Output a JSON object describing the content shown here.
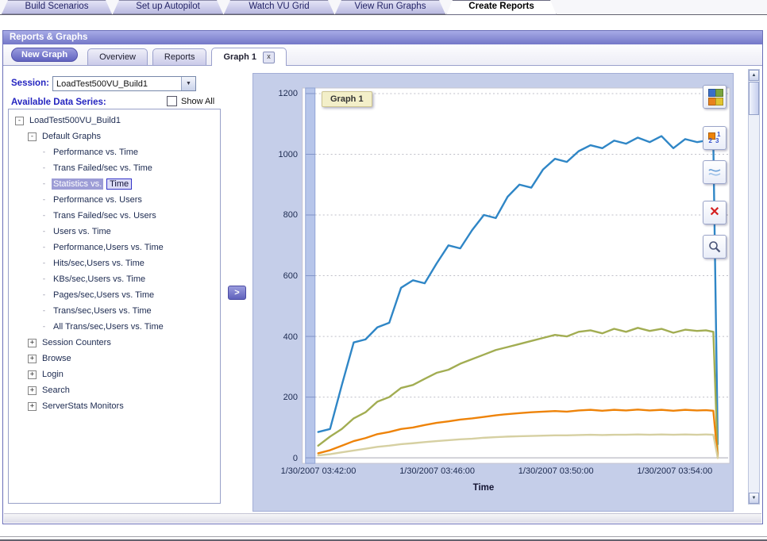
{
  "top_tabs": {
    "items": [
      {
        "label": "Build Scenarios",
        "active": false
      },
      {
        "label": "Set up Autopilot",
        "active": false
      },
      {
        "label": "Watch VU Grid",
        "active": false
      },
      {
        "label": "View Run Graphs",
        "active": false
      },
      {
        "label": "Create Reports",
        "active": true
      }
    ]
  },
  "panel": {
    "title": "Reports & Graphs",
    "new_graph_button": "New Graph",
    "close_glyph": "x",
    "tabs": [
      {
        "label": "Overview",
        "active": false,
        "closable": false
      },
      {
        "label": "Reports",
        "active": false,
        "closable": false
      },
      {
        "label": "Graph 1",
        "active": true,
        "closable": true
      }
    ]
  },
  "sidebar": {
    "session_label": "Session:",
    "session_value": "LoadTest500VU_Build1",
    "series_heading": "Available Data Series:",
    "show_all_label": "Show All",
    "add_button_label": ">",
    "tree": [
      {
        "label": "LoadTest500VU_Build1",
        "level": 0,
        "expander": "minus"
      },
      {
        "label": "Default Graphs",
        "level": 1,
        "expander": "minus"
      },
      {
        "label": "Performance vs. Time",
        "level": 2,
        "expander": "leaf"
      },
      {
        "label": "Trans Failed/sec vs. Time",
        "level": 2,
        "expander": "leaf"
      },
      {
        "label": "Statistics vs.",
        "boxed": "Time",
        "level": 2,
        "expander": "leaf",
        "selected": true
      },
      {
        "label": "Performance vs. Users",
        "level": 2,
        "expander": "leaf"
      },
      {
        "label": "Trans Failed/sec vs. Users",
        "level": 2,
        "expander": "leaf"
      },
      {
        "label": "Users vs. Time",
        "level": 2,
        "expander": "leaf"
      },
      {
        "label": "Performance,Users vs. Time",
        "level": 2,
        "expander": "leaf"
      },
      {
        "label": "Hits/sec,Users vs. Time",
        "level": 2,
        "expander": "leaf"
      },
      {
        "label": "KBs/sec,Users vs. Time",
        "level": 2,
        "expander": "leaf"
      },
      {
        "label": "Pages/sec,Users vs. Time",
        "level": 2,
        "expander": "leaf"
      },
      {
        "label": "Trans/sec,Users vs. Time",
        "level": 2,
        "expander": "leaf"
      },
      {
        "label": "All Trans/sec,Users vs. Time",
        "level": 2,
        "expander": "leaf"
      },
      {
        "label": "Session Counters",
        "level": 1,
        "expander": "plus"
      },
      {
        "label": "Browse",
        "level": 1,
        "expander": "plus"
      },
      {
        "label": "Login",
        "level": 1,
        "expander": "plus"
      },
      {
        "label": "Search",
        "level": 1,
        "expander": "plus"
      },
      {
        "label": "ServerStats Monitors",
        "level": 1,
        "expander": "plus"
      }
    ]
  },
  "toolbar": {
    "numbers": [
      "1",
      "2",
      "3"
    ],
    "delete_glyph": "✕",
    "palette": [
      "#3a6fc8",
      "#7aa53e",
      "#e8821e",
      "#e2c430"
    ],
    "button_names": [
      "graph-type-colors",
      "data-labels",
      "line-style",
      "delete-graph",
      "zoom"
    ]
  },
  "chart_data": {
    "type": "line",
    "title": "Graph 1",
    "xlabel": "Time",
    "ylabel": "",
    "ylim": [
      0,
      1200
    ],
    "yticks": [
      0,
      200,
      400,
      600,
      800,
      1000,
      1200
    ],
    "grid": "horizontal-dashed",
    "legend": "none",
    "xticks": [
      {
        "minute": 2,
        "label": "1/30/2007 03:42:00"
      },
      {
        "minute": 6,
        "label": "1/30/2007 03:46:00"
      },
      {
        "minute": 10,
        "label": "1/30/2007 03:50:00"
      },
      {
        "minute": 14,
        "label": "1/30/2007 03:54:00"
      }
    ],
    "x_minutes": [
      2.0,
      2.4,
      2.8,
      3.2,
      3.6,
      4.0,
      4.4,
      4.8,
      5.2,
      5.6,
      6.0,
      6.4,
      6.8,
      7.2,
      7.6,
      8.0,
      8.4,
      8.8,
      9.2,
      9.6,
      10.0,
      10.4,
      10.8,
      11.2,
      11.6,
      12.0,
      12.4,
      12.8,
      13.2,
      13.6,
      14.0,
      14.4,
      14.8,
      15.1,
      15.35,
      15.5
    ],
    "series": [
      {
        "name": "blue-series",
        "color": "#2f86c6",
        "y": [
          85,
          95,
          240,
          380,
          390,
          430,
          445,
          560,
          585,
          575,
          640,
          700,
          690,
          750,
          800,
          790,
          860,
          900,
          890,
          950,
          985,
          975,
          1010,
          1030,
          1020,
          1045,
          1035,
          1055,
          1040,
          1060,
          1020,
          1050,
          1040,
          1045,
          1040,
          45
        ]
      },
      {
        "name": "olive-series",
        "color": "#a2ad52",
        "y": [
          40,
          70,
          95,
          130,
          150,
          185,
          200,
          230,
          240,
          260,
          280,
          290,
          310,
          325,
          340,
          355,
          365,
          375,
          385,
          395,
          405,
          400,
          415,
          420,
          410,
          425,
          415,
          428,
          418,
          425,
          412,
          422,
          418,
          420,
          415,
          0
        ]
      },
      {
        "name": "orange-series",
        "color": "#ee8309",
        "y": [
          15,
          25,
          40,
          55,
          65,
          78,
          85,
          95,
          100,
          108,
          115,
          120,
          126,
          130,
          135,
          140,
          144,
          147,
          150,
          152,
          154,
          152,
          156,
          158,
          155,
          158,
          156,
          159,
          156,
          158,
          155,
          158,
          156,
          157,
          155,
          0
        ]
      },
      {
        "name": "tan-series",
        "color": "#d6d0a2",
        "y": [
          8,
          12,
          18,
          24,
          30,
          36,
          40,
          45,
          48,
          52,
          55,
          58,
          61,
          63,
          66,
          68,
          70,
          71,
          72,
          73,
          74,
          74,
          75,
          76,
          75,
          76,
          76,
          77,
          76,
          77,
          76,
          77,
          76,
          77,
          76,
          0
        ]
      }
    ]
  }
}
